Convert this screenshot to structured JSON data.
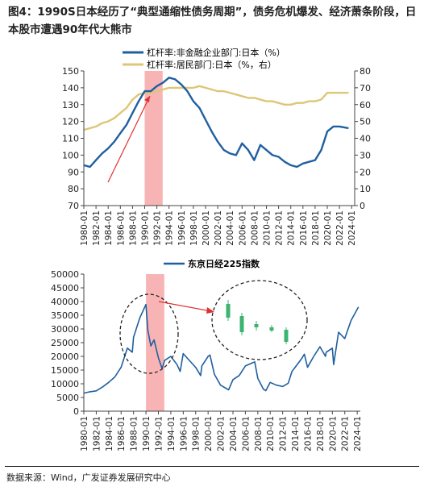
{
  "title": "图4：1990S日本经历了“典型通缩性债务周期”，债务危机爆发、经济萧条阶段，日本股市遭遇90年代大熊市",
  "source": "数据来源：Wind，广发证券发展研究中心",
  "colors": {
    "leverage_nonfin": "#1f5fa0",
    "leverage_household": "#ddc676",
    "nikkei": "#1f5fa0",
    "highlight": "#f7a7a7",
    "arrow": "#e03030",
    "candle": "#3cb371"
  },
  "chart_data": [
    {
      "type": "line",
      "x_tick_labels": [
        "1980-01",
        "1982-01",
        "1984-01",
        "1986-01",
        "1988-01",
        "1990-01",
        "1992-01",
        "1994-01",
        "1996-01",
        "1998-01",
        "2000-01",
        "2002-01",
        "2004-01",
        "2006-01",
        "2008-01",
        "2010-01",
        "2012-01",
        "2014-01",
        "2016-01",
        "2018-01",
        "2020-01",
        "2022-01",
        "2024-01"
      ],
      "y_left": {
        "ylim": [
          70,
          150
        ],
        "ticks": [
          70,
          80,
          90,
          100,
          110,
          120,
          130,
          140,
          150
        ]
      },
      "y_right": {
        "ylim": [
          0,
          80
        ],
        "ticks": [
          0,
          10,
          20,
          30,
          40,
          50,
          60,
          70,
          80
        ]
      },
      "highlight_range": [
        "1990-01",
        "1992-12"
      ],
      "series": [
        {
          "name": "杠杆率:非金融企业部门:日本（%）",
          "axis": "left",
          "x": [
            1980,
            1981,
            1982,
            1983,
            1984,
            1985,
            1986,
            1987,
            1988,
            1989,
            1990,
            1991,
            1992,
            1993,
            1994,
            1995,
            1996,
            1997,
            1998,
            1999,
            2000,
            2001,
            2002,
            2003,
            2004,
            2005,
            2006,
            2007,
            2008,
            2009,
            2010,
            2011,
            2012,
            2013,
            2014,
            2015,
            2016,
            2017,
            2018,
            2019,
            2020,
            2021,
            2022,
            2023.5
          ],
          "values": [
            94,
            93,
            97,
            101,
            104,
            108,
            113,
            118,
            125,
            132,
            138,
            138,
            141,
            143,
            146,
            145,
            142,
            138,
            132,
            128,
            121,
            114,
            108,
            103,
            101,
            100,
            107,
            103,
            97,
            106,
            103,
            100,
            99,
            96,
            94,
            93,
            95,
            96,
            97,
            103,
            114,
            117,
            117,
            116
          ]
        },
        {
          "name": "杠杆率:居民部门:日本（%，右）",
          "axis": "right",
          "x": [
            1980,
            1981,
            1982,
            1983,
            1984,
            1985,
            1986,
            1987,
            1988,
            1989,
            1990,
            1991,
            1992,
            1993,
            1994,
            1995,
            1996,
            1997,
            1998,
            1999,
            2000,
            2001,
            2002,
            2003,
            2004,
            2005,
            2006,
            2007,
            2008,
            2009,
            2010,
            2011,
            2012,
            2013,
            2014,
            2015,
            2016,
            2017,
            2018,
            2019,
            2020,
            2021,
            2022,
            2023.5
          ],
          "values": [
            45,
            46,
            47,
            49,
            50,
            52,
            55,
            58,
            63,
            66,
            67,
            67,
            68,
            69,
            70,
            70,
            70,
            70,
            70,
            71,
            70,
            69,
            68,
            68,
            67,
            66,
            65,
            64,
            64,
            63,
            62,
            62,
            61,
            60,
            60,
            61,
            61,
            62,
            62,
            63,
            67,
            67,
            67,
            67
          ]
        }
      ]
    },
    {
      "type": "line",
      "x_tick_labels": [
        "1980-01",
        "1982-01",
        "1984-01",
        "1986-01",
        "1988-01",
        "1990-01",
        "1992-01",
        "1994-01",
        "1996-01",
        "1998-01",
        "2000-01",
        "2002-01",
        "2004-01",
        "2006-01",
        "2008-01",
        "2010-01",
        "2012-01",
        "2014-01",
        "2016-01",
        "2018-01",
        "2020-01",
        "2022-01",
        "2024-01"
      ],
      "y": {
        "ylim": [
          0,
          50000
        ],
        "ticks": [
          0,
          5000,
          10000,
          15000,
          20000,
          25000,
          30000,
          35000,
          40000,
          45000,
          50000
        ]
      },
      "highlight_range": [
        "1990-01",
        "1992-12"
      ],
      "series": [
        {
          "name": "东京日经225指数",
          "x": [
            1980,
            1981,
            1982,
            1983,
            1984,
            1985,
            1986,
            1987,
            1987.8,
            1988,
            1989,
            1989.99,
            1990.3,
            1990.8,
            1991.3,
            1992,
            1992.6,
            1993,
            1994,
            1995,
            1995.5,
            1996,
            1997,
            1998,
            1998.8,
            1999,
            2000,
            2000.3,
            2001,
            2002,
            2003.3,
            2004,
            2005,
            2006,
            2007,
            2007.5,
            2008,
            2008.9,
            2009.3,
            2010,
            2011,
            2012,
            2012.9,
            2013.5,
            2014,
            2015,
            2015.5,
            2016,
            2017,
            2018,
            2018.9,
            2019,
            2020,
            2020.2,
            2021,
            2022,
            2023,
            2024.2
          ],
          "values": [
            6600,
            7100,
            7400,
            8800,
            10500,
            12500,
            16000,
            23000,
            21500,
            27000,
            34000,
            38900,
            29500,
            23800,
            26000,
            19500,
            15500,
            18500,
            20000,
            17000,
            14500,
            21000,
            18500,
            16000,
            13000,
            16500,
            20000,
            20500,
            13500,
            9500,
            7800,
            11500,
            13000,
            16500,
            17500,
            18000,
            12000,
            8000,
            7500,
            10500,
            9500,
            9000,
            10200,
            14500,
            16000,
            19000,
            20800,
            16000,
            20000,
            23500,
            20000,
            21500,
            23000,
            17000,
            28800,
            26500,
            33000,
            38000
          ]
        }
      ],
      "annotation": "candlesticks-zoom-of-peak"
    }
  ]
}
